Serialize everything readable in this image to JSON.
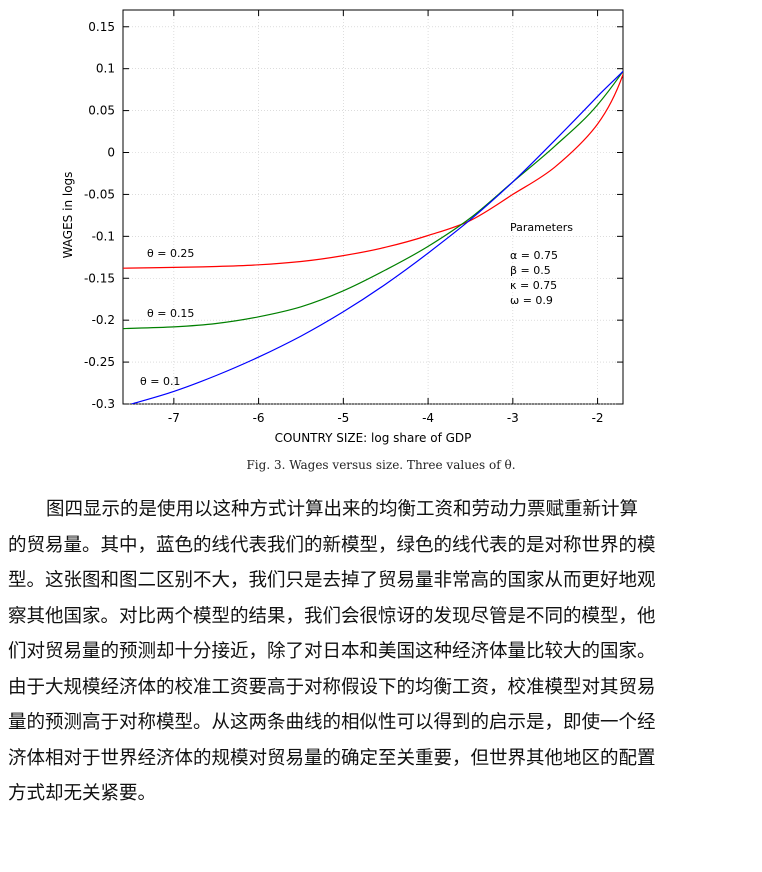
{
  "chart_data": {
    "type": "line",
    "xlabel": "COUNTRY SIZE: log share of GDP",
    "ylabel": "WAGES in logs",
    "xlim": [
      -7.6,
      -1.7
    ],
    "ylim": [
      -0.3,
      0.17
    ],
    "xticks": [
      -7,
      -6,
      -5,
      -4,
      -3,
      -2
    ],
    "xtick_labels": [
      "-7",
      "-6",
      "-5",
      "-4",
      "-3",
      "-2"
    ],
    "yticks": [
      0.15,
      0.1,
      0.05,
      0,
      -0.05,
      -0.1,
      -0.15,
      -0.2,
      -0.25,
      -0.3
    ],
    "ytick_labels": [
      "0.15",
      "0.1",
      "0.05",
      "0",
      "-0.05",
      "-0.1",
      "-0.15",
      "-0.2",
      "-0.25",
      "-0.3"
    ],
    "series": [
      {
        "name": "θ = 0.25",
        "color": "#ff0000",
        "x": [
          -7.6,
          -7,
          -6.5,
          -6,
          -5.5,
          -5,
          -4.5,
          -4,
          -3.5,
          -3,
          -2.5,
          -2,
          -1.7,
          -1.6
        ],
        "y": [
          -0.138,
          -0.137,
          -0.136,
          -0.134,
          -0.13,
          -0.123,
          -0.113,
          -0.099,
          -0.081,
          -0.05,
          -0.017,
          0.034,
          0.093,
          0.147
        ]
      },
      {
        "name": "θ = 0.15",
        "color": "#008000",
        "x": [
          -7.6,
          -7,
          -6.5,
          -6,
          -5.5,
          -5,
          -4.5,
          -4,
          -3.5,
          -3,
          -2.5,
          -2,
          -1.5,
          -1.3
        ],
        "y": [
          -0.21,
          -0.208,
          -0.204,
          -0.196,
          -0.184,
          -0.165,
          -0.14,
          -0.112,
          -0.078,
          -0.035,
          0.008,
          0.057,
          0.127,
          0.17
        ]
      },
      {
        "name": "θ = 0.1",
        "color": "#0000ff",
        "x": [
          -7.5,
          -7,
          -6.5,
          -6,
          -5.5,
          -5,
          -4.5,
          -4,
          -3.5,
          -3,
          -2.5,
          -2,
          -1.5,
          -1.3
        ],
        "y": [
          -0.3,
          -0.285,
          -0.266,
          -0.244,
          -0.219,
          -0.19,
          -0.157,
          -0.12,
          -0.08,
          -0.035,
          0.015,
          0.067,
          0.12,
          0.17
        ]
      }
    ],
    "annotations": {
      "theta_025": "θ = 0.25",
      "theta_015": "θ = 0.15",
      "theta_01": "θ = 0.1",
      "params_title": "Parameters",
      "params": [
        "α = 0.75",
        "β = 0.5",
        "κ = 0.75",
        "ω = 0.9"
      ]
    }
  },
  "caption": "Fig. 3.  Wages versus size. Three values of θ.",
  "paragraph_lines": [
    "图四显示的是使用以这种方式计算出来的均衡工资和劳动力票赋重新计算",
    "的贸易量。其中，蓝色的线代表我们的新模型，绿色的线代表的是对称世界的模",
    "型。这张图和图二区别不大，我们只是去掉了贸易量非常高的国家从而更好地观",
    "察其他国家。对比两个模型的结果，我们会很惊讶的发现尽管是不同的模型，他",
    "们对贸易量的预测却十分接近，除了对日本和美国这种经济体量比较大的国家。",
    "由于大规模经济体的校准工资要高于对称假设下的均衡工资，校准模型对其贸易",
    "量的预测高于对称模型。从这两条曲线的相似性可以得到的启示是，即使一个经",
    "济体相对于世界经济体的规模对贸易量的确定至关重要，但世界其他地区的配置",
    "方式却无关紧要。"
  ]
}
